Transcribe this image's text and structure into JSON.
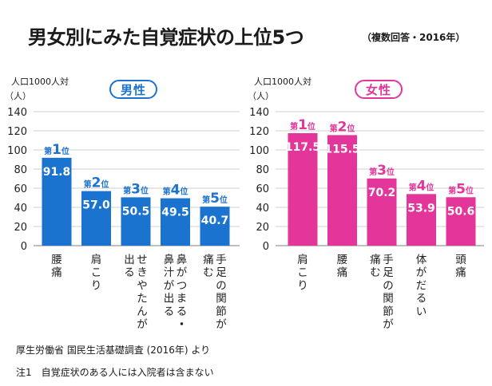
{
  "header": {
    "title": "男女別にみた自覚症状の上位5つ",
    "note": "（複数回答・2016年）"
  },
  "footer": {
    "source": "厚生労働省 国民生活基礎調査 (2016年) より",
    "note": "注1　自覚症状のある人には入院者は含まない"
  },
  "chart_data": [
    {
      "type": "bar",
      "title": "男性",
      "ylabel": "人口1000人対",
      "yunit": "（人）",
      "ylim": [
        0,
        140
      ],
      "yticks": [
        0,
        20,
        40,
        60,
        80,
        100,
        120,
        140
      ],
      "color": "#1a73cf",
      "categories": [
        "腰痛",
        "肩こり",
        "せきやたんが出る",
        "鼻がつまる・鼻汁が出る",
        "手足の関節が痛む"
      ],
      "label_columns": [
        [
          "腰痛"
        ],
        [
          "肩こり"
        ],
        [
          "せきやたんが",
          "出る"
        ],
        [
          "鼻がつまる・",
          "鼻汁が出る"
        ],
        [
          "手足の関節が",
          "痛む"
        ]
      ],
      "values": [
        91.8,
        57.0,
        50.5,
        49.5,
        40.7
      ],
      "value_labels": [
        "91.8",
        "57.0",
        "50.5",
        "49.5",
        "40.7"
      ],
      "ranks": [
        "1",
        "2",
        "3",
        "4",
        "5"
      ],
      "rank_prefix": "第",
      "rank_suffix": "位"
    },
    {
      "type": "bar",
      "title": "女性",
      "ylabel": "人口1000人対",
      "yunit": "（人）",
      "ylim": [
        0,
        140
      ],
      "yticks": [
        0,
        20,
        40,
        60,
        80,
        100,
        120,
        140
      ],
      "color": "#e3359a",
      "categories": [
        "肩こり",
        "腰痛",
        "手足の関節が痛む",
        "体がだるい",
        "頭痛"
      ],
      "label_columns": [
        [
          "肩こり"
        ],
        [
          "腰痛"
        ],
        [
          "手足の関節が",
          "痛む"
        ],
        [
          "体がだるい"
        ],
        [
          "頭痛"
        ]
      ],
      "values": [
        117.5,
        115.5,
        70.2,
        53.9,
        50.6
      ],
      "value_labels": [
        "117.5",
        "115.5",
        "70.2",
        "53.9",
        "50.6"
      ],
      "ranks": [
        "1",
        "2",
        "3",
        "4",
        "5"
      ],
      "rank_prefix": "第",
      "rank_suffix": "位"
    }
  ]
}
